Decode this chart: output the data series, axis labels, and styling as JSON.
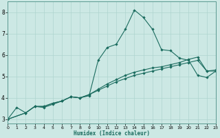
{
  "xlabel": "Humidex (Indice chaleur)",
  "bg_color": "#cce8e4",
  "grid_color": "#aed4cf",
  "line_color": "#1a6b5e",
  "xlim": [
    0,
    23
  ],
  "ylim": [
    2.8,
    8.5
  ],
  "xticks": [
    0,
    1,
    2,
    3,
    4,
    5,
    6,
    7,
    8,
    9,
    10,
    11,
    12,
    13,
    14,
    15,
    16,
    17,
    18,
    19,
    20,
    21,
    22,
    23
  ],
  "yticks": [
    3,
    4,
    5,
    6,
    7,
    8
  ],
  "line1_x": [
    0,
    1,
    2,
    3,
    4,
    5,
    6,
    7,
    8,
    9,
    10,
    11,
    12,
    13,
    14,
    15,
    16,
    17,
    18,
    19,
    20,
    21,
    22,
    23
  ],
  "line1_y": [
    3.0,
    3.55,
    3.3,
    3.6,
    3.55,
    3.7,
    3.85,
    4.05,
    4.0,
    4.1,
    5.75,
    6.35,
    6.5,
    7.2,
    8.1,
    7.75,
    7.2,
    6.25,
    6.2,
    5.85,
    5.75,
    5.05,
    4.95,
    5.25
  ],
  "line2_x": [
    0,
    2,
    3,
    4,
    5,
    6,
    7,
    8,
    9,
    10,
    11,
    12,
    13,
    14,
    15,
    16,
    17,
    18,
    19,
    20,
    21,
    22,
    23
  ],
  "line2_y": [
    3.0,
    3.3,
    3.6,
    3.6,
    3.75,
    3.85,
    4.05,
    4.0,
    4.15,
    4.35,
    4.55,
    4.75,
    4.9,
    5.05,
    5.15,
    5.25,
    5.35,
    5.45,
    5.55,
    5.65,
    5.75,
    5.25,
    5.25
  ],
  "line3_x": [
    0,
    2,
    3,
    4,
    5,
    6,
    7,
    8,
    9,
    10,
    11,
    12,
    13,
    14,
    15,
    16,
    17,
    18,
    19,
    20,
    21,
    22,
    23
  ],
  "line3_y": [
    3.0,
    3.3,
    3.6,
    3.6,
    3.75,
    3.85,
    4.05,
    4.0,
    4.15,
    4.4,
    4.65,
    4.85,
    5.05,
    5.2,
    5.3,
    5.4,
    5.45,
    5.55,
    5.65,
    5.8,
    5.9,
    5.25,
    5.3
  ]
}
